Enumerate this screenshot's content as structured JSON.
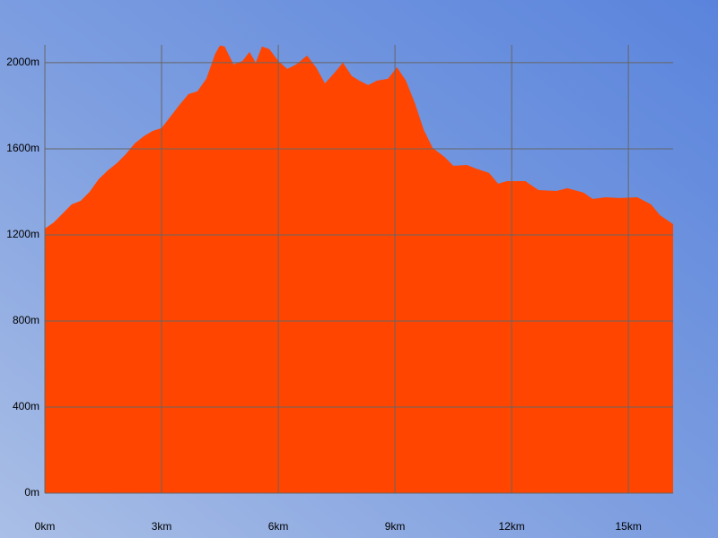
{
  "chart_data": {
    "type": "area",
    "x": [
      0,
      0.23,
      0.46,
      0.69,
      0.92,
      1.15,
      1.38,
      1.62,
      1.85,
      2.08,
      2.31,
      2.54,
      2.77,
      3.0,
      3.23,
      3.46,
      3.69,
      3.92,
      4.15,
      4.38,
      4.5,
      4.62,
      4.85,
      5.08,
      5.26,
      5.42,
      5.58,
      5.77,
      6.0,
      6.23,
      6.46,
      6.74,
      6.97,
      7.2,
      7.43,
      7.66,
      7.89,
      8.08,
      8.31,
      8.54,
      8.82,
      9.05,
      9.28,
      9.51,
      9.74,
      9.97,
      10.27,
      10.5,
      10.85,
      11.08,
      11.42,
      11.65,
      11.88,
      12.35,
      12.69,
      13.15,
      13.43,
      13.85,
      14.08,
      14.42,
      14.77,
      15.23,
      15.58,
      15.81,
      16.15
    ],
    "series": [
      {
        "color": "#ff4500",
        "values": [
          1229,
          1258,
          1300,
          1342,
          1358,
          1400,
          1458,
          1500,
          1533,
          1575,
          1625,
          1658,
          1683,
          1696,
          1750,
          1804,
          1854,
          1867,
          1925,
          2042,
          2080,
          2075,
          1992,
          2008,
          2050,
          2000,
          2075,
          2063,
          2008,
          1971,
          1992,
          2033,
          1979,
          1904,
          1950,
          2000,
          1938,
          1917,
          1896,
          1917,
          1925,
          1979,
          1917,
          1813,
          1688,
          1604,
          1563,
          1521,
          1525,
          1508,
          1488,
          1438,
          1450,
          1450,
          1408,
          1404,
          1417,
          1396,
          1367,
          1375,
          1371,
          1375,
          1342,
          1292,
          1250
        ]
      }
    ],
    "xlim": [
      0,
      16.15
    ],
    "xticks": [
      {
        "value": 0,
        "label": "0km"
      },
      {
        "value": 3,
        "label": "3km"
      },
      {
        "value": 6,
        "label": "6km"
      },
      {
        "value": 9,
        "label": "9km"
      },
      {
        "value": 12,
        "label": "12km"
      },
      {
        "value": 15,
        "label": "15km"
      }
    ],
    "ylim": [
      0,
      2083
    ],
    "yticks": [
      {
        "value": 0,
        "label": "0m"
      },
      {
        "value": 400,
        "label": "400m"
      },
      {
        "value": 800,
        "label": "800m"
      },
      {
        "value": 1200,
        "label": "1200m"
      },
      {
        "value": 1600,
        "label": "1600m"
      },
      {
        "value": 2000,
        "label": "2000m"
      }
    ],
    "grid": true
  }
}
